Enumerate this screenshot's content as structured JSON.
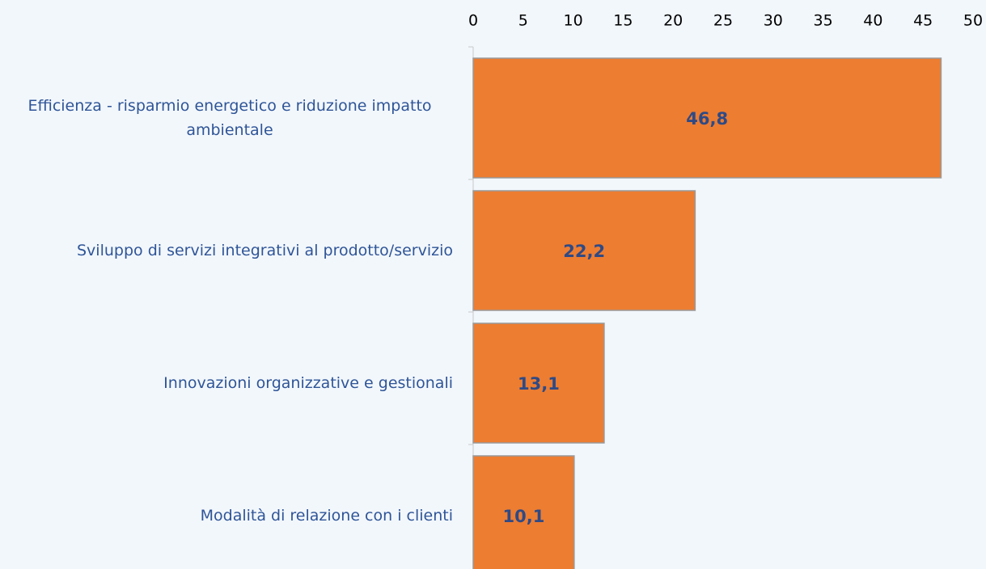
{
  "chart_data": {
    "type": "bar",
    "orientation": "horizontal",
    "categories": [
      "Efficienza - risparmio energetico e riduzione impatto ambientale",
      "Sviluppo di servizi integrativi al prodotto/servizio",
      "Innovazioni organizzative e gestionali",
      "Modalità di relazione con i clienti"
    ],
    "values": [
      46.8,
      22.2,
      13.1,
      10.1
    ],
    "value_labels": [
      "46,8",
      "22,2",
      "13,1",
      "10,1"
    ],
    "color": "#ed7d31",
    "xlim": [
      0,
      50
    ],
    "xticks": [
      0,
      5,
      10,
      15,
      20,
      25,
      30,
      35,
      40,
      45,
      50
    ]
  }
}
